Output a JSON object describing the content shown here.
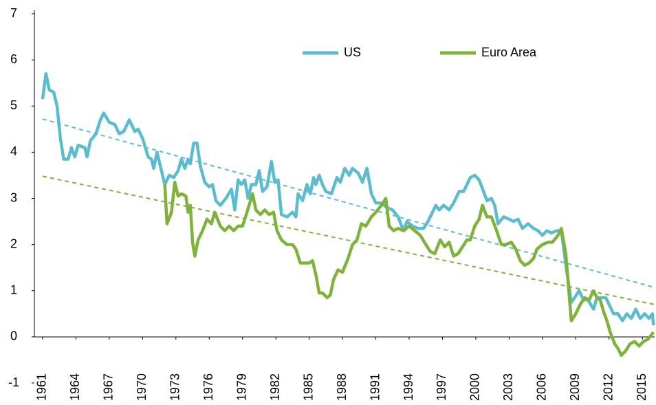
{
  "chart_data": {
    "type": "line",
    "xlim": [
      1960.26,
      2016.1
    ],
    "xticks": [
      1961,
      1964,
      1967,
      1970,
      1973,
      1976,
      1979,
      1982,
      1985,
      1988,
      1991,
      1994,
      1997,
      2000,
      2003,
      2006,
      2009,
      2012,
      2015
    ],
    "ylim": [
      -1,
      7
    ],
    "yticks": [
      -1,
      0,
      1,
      2,
      3,
      4,
      5,
      6,
      7
    ],
    "series": [
      {
        "name": "US",
        "color": "#5bbcd0",
        "x": [
          1961.0,
          1961.3,
          1961.6,
          1962,
          1962.3,
          1962.6,
          1962.9,
          1963.3,
          1963.6,
          1963.9,
          1964.2,
          1964.8,
          1965,
          1965.3,
          1965.8,
          1966.2,
          1966.5,
          1967,
          1967.5,
          1967.9,
          1968.3,
          1968.8,
          1969.3,
          1969.6,
          1970,
          1970.5,
          1970.8,
          1971,
          1971.3,
          1971.7,
          1972,
          1972.4,
          1972.8,
          1973.2,
          1973.5,
          1973.8,
          1974.1,
          1974.3,
          1974.6,
          1974.9,
          1975.2,
          1975.6,
          1976,
          1976.3,
          1976.6,
          1977,
          1977.5,
          1978,
          1978.3,
          1978.6,
          1978.9,
          1979.2,
          1979.5,
          1979.8,
          1980.2,
          1980.5,
          1980.8,
          1981.2,
          1981.6,
          1981.9,
          1982.2,
          1982.5,
          1983,
          1983.5,
          1983.8,
          1984,
          1984.4,
          1984.8,
          1985.1,
          1985.4,
          1985.6,
          1985.9,
          1986.2,
          1986.5,
          1987,
          1987.5,
          1987.8,
          1988.2,
          1988.6,
          1988.9,
          1989.4,
          1989.8,
          1990.2,
          1990.6,
          1991,
          1991.5,
          1992,
          1992.5,
          1993,
          1993.5,
          1993.8,
          1994.3,
          1994.8,
          1995.3,
          1995.7,
          1996,
          1996.4,
          1996.7,
          1997.1,
          1997.6,
          1998,
          1998.5,
          1998.9,
          1999.5,
          1999.9,
          2000.3,
          2000.7,
          2001,
          2001.4,
          2001.7,
          2002,
          2002.5,
          2003,
          2003.4,
          2003.8,
          2004.2,
          2004.7,
          2005.2,
          2005.6,
          2006,
          2006.4,
          2006.8,
          2007.3,
          2007.7,
          2008.2,
          2008.6,
          2008.9,
          2009.3,
          2009.7,
          2010.1,
          2010.6,
          2010.9,
          2011.3,
          2011.7,
          2012,
          2012.4,
          2012.8,
          2013.2,
          2013.6,
          2014,
          2014.4,
          2014.8,
          2015.2,
          2015.6,
          2015.9,
          2016.0
        ],
        "values": [
          5.15,
          5.7,
          5.35,
          5.3,
          5.0,
          4.3,
          3.85,
          3.85,
          4.1,
          3.9,
          4.15,
          4.1,
          3.9,
          4.25,
          4.4,
          4.7,
          4.85,
          4.65,
          4.6,
          4.4,
          4.45,
          4.7,
          4.45,
          4.5,
          4.3,
          3.9,
          3.85,
          3.65,
          4.0,
          3.6,
          3.3,
          3.5,
          3.45,
          3.6,
          3.85,
          3.65,
          3.85,
          3.75,
          4.2,
          4.2,
          3.7,
          3.35,
          3.25,
          3.3,
          2.95,
          2.85,
          3.0,
          3.2,
          2.75,
          3.4,
          3.3,
          3.4,
          3.0,
          3.3,
          3.3,
          3.6,
          3.15,
          3.25,
          3.8,
          3.35,
          3.4,
          2.65,
          2.6,
          2.7,
          2.6,
          3.1,
          2.95,
          3.3,
          3.1,
          3.45,
          3.3,
          3.5,
          3.3,
          3.15,
          3.1,
          3.45,
          3.35,
          3.65,
          3.5,
          3.65,
          3.55,
          3.35,
          3.65,
          3.1,
          2.9,
          2.9,
          2.8,
          2.75,
          2.6,
          2.3,
          2.5,
          2.4,
          2.35,
          2.35,
          2.5,
          2.65,
          2.85,
          2.75,
          2.85,
          2.75,
          2.9,
          3.15,
          3.15,
          3.45,
          3.5,
          3.4,
          3.15,
          2.95,
          3.0,
          2.85,
          2.45,
          2.6,
          2.55,
          2.5,
          2.55,
          2.35,
          2.45,
          2.35,
          2.3,
          2.2,
          2.3,
          2.25,
          2.3,
          2.3,
          1.4,
          0.75,
          0.85,
          1.0,
          0.8,
          0.8,
          0.6,
          0.85,
          0.85,
          0.85,
          0.7,
          0.5,
          0.5,
          0.35,
          0.5,
          0.4,
          0.6,
          0.4,
          0.5,
          0.4,
          0.5,
          0.25
        ]
      },
      {
        "name": "Euro Area",
        "color": "#7fb23a",
        "x": [
          1972,
          1972.2,
          1972.6,
          1972.9,
          1973.2,
          1973.5,
          1973.9,
          1974.1,
          1974.3,
          1974.5,
          1974.7,
          1975,
          1975.4,
          1975.8,
          1976.2,
          1976.5,
          1977,
          1977.4,
          1977.8,
          1978.2,
          1978.6,
          1979,
          1979.4,
          1979.9,
          1980.2,
          1980.6,
          1981,
          1981.4,
          1981.8,
          1982.1,
          1982.5,
          1983,
          1983.5,
          1983.8,
          1984.2,
          1984.5,
          1985,
          1985.3,
          1985.6,
          1985.9,
          1986.2,
          1986.6,
          1986.9,
          1987.2,
          1987.6,
          1988,
          1988.5,
          1988.9,
          1989.3,
          1989.7,
          1990.1,
          1990.6,
          1991,
          1991.5,
          1991.9,
          1992.2,
          1992.6,
          1993,
          1993.5,
          1994,
          1994.5,
          1995,
          1995.5,
          1995.9,
          1996.3,
          1996.8,
          1997.2,
          1997.6,
          1998,
          1998.4,
          1998.8,
          1999.2,
          1999.5,
          1999.9,
          2000.3,
          2000.6,
          2001,
          2001.4,
          2001.8,
          2002.3,
          2002.7,
          2003.2,
          2003.6,
          2004,
          2004.4,
          2004.8,
          2005.2,
          2005.5,
          2006,
          2006.5,
          2006.9,
          2007.4,
          2007.7,
          2008.1,
          2008.6,
          2009,
          2009.4,
          2009.8,
          2010.2,
          2010.6,
          2010.9,
          2011.2,
          2011.5,
          2011.8,
          2012.1,
          2012.5,
          2012.8,
          2013.1,
          2013.5,
          2013.9,
          2014.3,
          2014.7,
          2015.1,
          2015.5,
          2016
        ],
        "values": [
          3.3,
          2.45,
          2.7,
          3.35,
          3.05,
          3.1,
          3.05,
          2.7,
          2.85,
          2.05,
          1.75,
          2.1,
          2.3,
          2.55,
          2.45,
          2.7,
          2.4,
          2.3,
          2.4,
          2.3,
          2.4,
          2.4,
          2.7,
          3.1,
          2.75,
          2.65,
          2.75,
          2.65,
          2.7,
          2.3,
          2.1,
          2.0,
          2.0,
          1.9,
          1.6,
          1.6,
          1.6,
          1.65,
          1.35,
          0.95,
          0.95,
          0.85,
          0.9,
          1.25,
          1.45,
          1.4,
          1.7,
          2.0,
          2.1,
          2.45,
          2.4,
          2.6,
          2.7,
          2.85,
          3.0,
          2.4,
          2.3,
          2.35,
          2.3,
          2.4,
          2.3,
          2.2,
          2.0,
          1.85,
          1.8,
          2.1,
          1.95,
          2.05,
          1.75,
          1.8,
          1.95,
          2.1,
          2.1,
          2.4,
          2.55,
          2.85,
          2.6,
          2.6,
          2.35,
          2.0,
          2.0,
          2.05,
          1.9,
          1.65,
          1.55,
          1.6,
          1.7,
          1.9,
          2.0,
          2.05,
          2.05,
          2.2,
          2.35,
          1.8,
          0.35,
          0.5,
          0.7,
          0.85,
          0.8,
          1.0,
          0.85,
          0.8,
          0.55,
          0.35,
          0.1,
          -0.15,
          -0.25,
          -0.4,
          -0.3,
          -0.15,
          -0.1,
          -0.2,
          -0.1,
          -0.05,
          0.1
        ]
      }
    ],
    "trendlines": [
      {
        "color": "#5bbcd0",
        "x": [
          1961,
          2016.1
        ],
        "values": [
          4.72,
          1.07
        ]
      },
      {
        "color": "#7fb23a",
        "x": [
          1961,
          2016.1
        ],
        "values": [
          3.48,
          0.7
        ]
      }
    ]
  }
}
